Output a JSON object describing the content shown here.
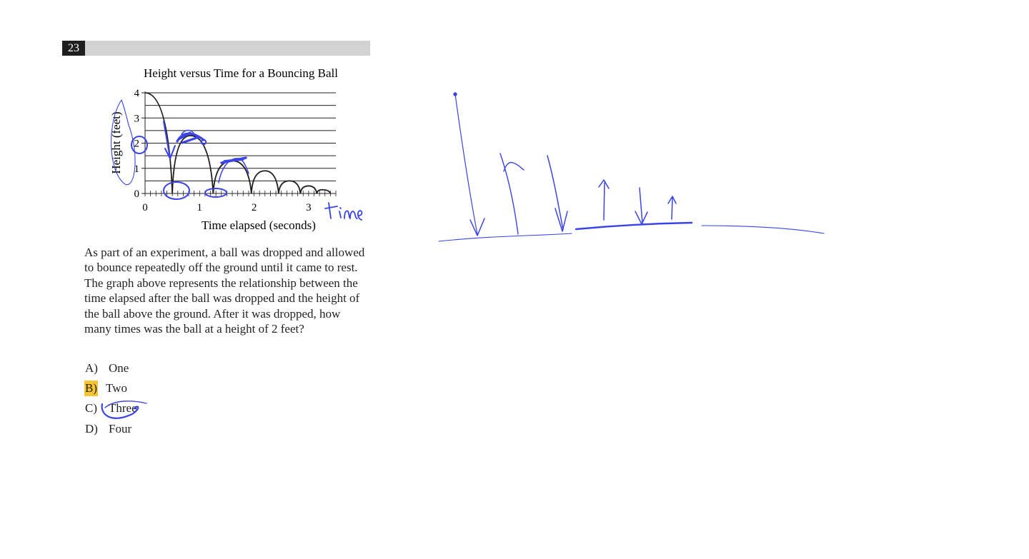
{
  "question": {
    "number": "23",
    "text": "As part of an experiment, a ball was dropped and allowed to bounce repeatedly off the ground until it came to rest.  The graph above represents the relationship between the time elapsed after the ball was dropped and the height of the ball above the ground.  After it was dropped, how many times was the ball at a height of 2 feet?",
    "choices": [
      {
        "letter": "A)",
        "text": "One"
      },
      {
        "letter": "B)",
        "text": "Two",
        "highlighted": true
      },
      {
        "letter": "C)",
        "text": "Three",
        "circled": true
      },
      {
        "letter": "D)",
        "text": "Four"
      }
    ]
  },
  "chart_data": {
    "type": "line",
    "title": "Height versus Time for a Bouncing Ball",
    "xlabel": "Time elapsed (seconds)",
    "ylabel": "Height (feet)",
    "xlim": [
      0,
      3.5
    ],
    "ylim": [
      0,
      4
    ],
    "x_ticks": [
      "0",
      "1",
      "2",
      "3"
    ],
    "y_ticks": [
      "0",
      "1",
      "2",
      "3",
      "4"
    ],
    "grid": "horizontal",
    "series": [
      {
        "points": [
          [
            0,
            4
          ],
          [
            0.5,
            0
          ],
          [
            0.83,
            2.3
          ],
          [
            1.25,
            0
          ],
          [
            1.6,
            1.3
          ],
          [
            1.95,
            0
          ],
          [
            2.2,
            0.9
          ],
          [
            2.45,
            0
          ],
          [
            2.65,
            0.5
          ],
          [
            2.85,
            0
          ],
          [
            3.0,
            0.3
          ],
          [
            3.15,
            0
          ],
          [
            3.25,
            0.15
          ],
          [
            3.4,
            0
          ]
        ]
      }
    ]
  },
  "annotations": {
    "handwritten_label": "time",
    "ink_color": "#3a44e6",
    "highlight_color": "#f7c531"
  }
}
